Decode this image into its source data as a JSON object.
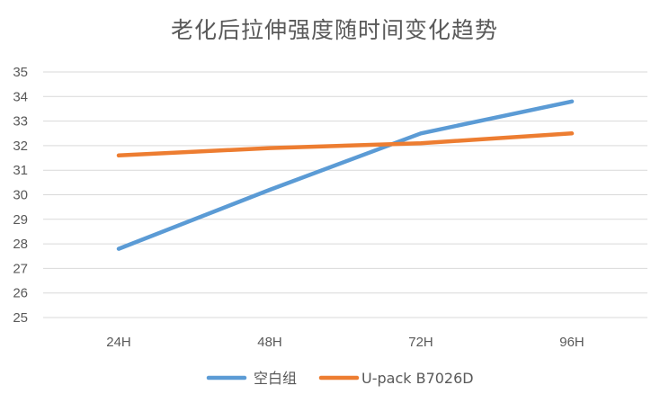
{
  "chart_data": {
    "type": "line",
    "title": "老化后拉伸强度随时间变化趋势",
    "categories": [
      "24H",
      "48H",
      "72H",
      "96H"
    ],
    "ylim": [
      25,
      35
    ],
    "yticks": [
      25,
      26,
      27,
      28,
      29,
      30,
      31,
      32,
      33,
      34,
      35
    ],
    "grid": true,
    "legend_position": "bottom",
    "series": [
      {
        "name": "空白组",
        "values": [
          27.8,
          30.2,
          32.5,
          33.8
        ],
        "color": "#5b9bd5"
      },
      {
        "name": "U-pack B7026D",
        "values": [
          31.6,
          31.9,
          32.1,
          32.5
        ],
        "color": "#ed7d31"
      }
    ]
  }
}
